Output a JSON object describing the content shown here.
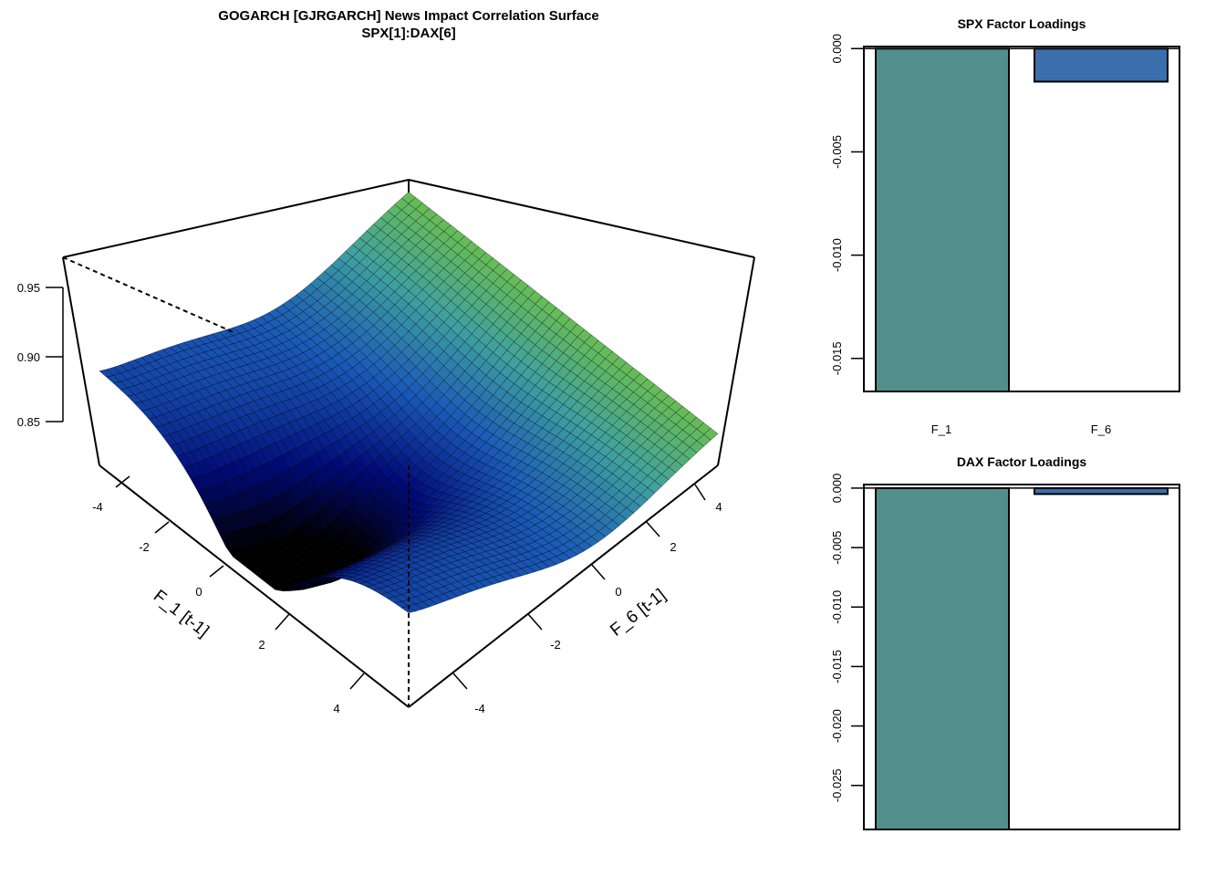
{
  "chart_data": [
    {
      "type": "surface",
      "title": "GOGARCH [GJRGARCH] News Impact Correlation Surface",
      "subtitle": "SPX[1]:DAX[6]",
      "xlabel": "F_1 [t-1]",
      "ylabel": "F_6 [t-1]",
      "xticks": [
        "-4",
        "-2",
        "0",
        "2",
        "4"
      ],
      "yticks": [
        "-4",
        "-2",
        "0",
        "2",
        "4"
      ],
      "zticks": [
        "0.85",
        "0.90",
        "0.95"
      ],
      "xlim": [
        -5,
        5
      ],
      "ylim": [
        -5,
        5
      ],
      "zlim": [
        0.82,
        0.975
      ],
      "surface_model": {
        "z_min": 0.83,
        "z_max": 0.972,
        "z_at_F1_neg5_F6_neg5": 0.878,
        "minimum_near": {
          "F_1": 0,
          "F_6": 0
        },
        "colors_low_to_high": [
          "#000000",
          "#000a78",
          "#1a5ab8",
          "#3fa0a0",
          "#6cc04c"
        ]
      }
    },
    {
      "type": "bar",
      "title": "SPX Factor Loadings",
      "categories": [
        "F_1",
        "F_6"
      ],
      "values": [
        -0.0166,
        -0.0016
      ],
      "yticks": [
        "0.000",
        "-0.005",
        "-0.010",
        "-0.015"
      ],
      "ylim": [
        -0.0166,
        0.0001
      ],
      "colors": [
        "#528f8c",
        "#3a6ead"
      ]
    },
    {
      "type": "bar",
      "title": "DAX Factor Loadings",
      "categories": [
        "F_1",
        "F_6"
      ],
      "values": [
        -0.0287,
        -0.0005
      ],
      "yticks": [
        "0.000",
        "-0.005",
        "-0.010",
        "-0.015",
        "-0.020",
        "-0.025"
      ],
      "ylim": [
        -0.0287,
        0.0003
      ],
      "colors": [
        "#528f8c",
        "#3a6ead"
      ]
    }
  ]
}
